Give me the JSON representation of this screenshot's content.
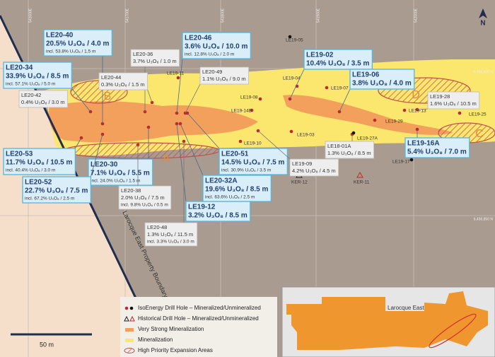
{
  "grid_labels": {
    "top": [
      "541600E",
      "541700E",
      "541800E",
      "541900E",
      "542000E"
    ],
    "right": [
      "6,456,900 N",
      "6,456,850 N"
    ]
  },
  "north_label": "N",
  "boundary_label": "Larocque East Property Boundary",
  "zones": [
    "A",
    "B",
    "C",
    "D"
  ],
  "callouts": [
    {
      "hole": "LE20-40",
      "grade": "20.5% U₃O₈ / 4.0 m",
      "incl": "incl. 53.8% U₃O₈ / 1.5 m",
      "style": "blue"
    },
    {
      "hole": "LE20-46",
      "grade": "3.6% U₃O₈ / 10.0 m",
      "incl": "incl. 12.8% U₃O₈ / 2.0 m",
      "style": "blue"
    },
    {
      "hole": "LE20-34",
      "grade": "33.9% U₃O₈ / 8.5 m",
      "incl": "incl. 57.1% U₃O₈ / 5.0 m",
      "style": "blue"
    },
    {
      "hole": "LE20-36",
      "grade": "3.7% U₃O₈ / 1.0 m",
      "style": "grey"
    },
    {
      "hole": "LE20-44",
      "grade": "0.3% U₃O₈ / 1.5 m",
      "style": "grey"
    },
    {
      "hole": "LE20-49",
      "grade": "1.1% U₃O₈ / 9.0 m",
      "style": "grey"
    },
    {
      "hole": "LE19-02",
      "grade": "10.4% U₃O₈ / 3.5 m",
      "style": "blue"
    },
    {
      "hole": "LE19-06",
      "grade": "3.8% U₃O₈ / 4.0 m",
      "style": "blue"
    },
    {
      "hole": "LE20-42",
      "grade": "0.4% U₃O₈ / 3.0 m",
      "style": "grey"
    },
    {
      "hole": "LE19-28",
      "grade": "1.6% U₃O₈ / 10.5 m",
      "style": "grey"
    },
    {
      "hole": "LE20-53",
      "grade": "11.7% U₃O₈ / 10.5 m",
      "incl": "incl. 40.4% U₃O₈ / 3.0 m",
      "style": "blue"
    },
    {
      "hole": "LE20-30",
      "grade": "7.1% U₃O₈ / 5.5 m",
      "incl": "incl. 24.0% U₃O₈ / 1.5 m",
      "style": "blue"
    },
    {
      "hole": "LE20-51",
      "grade": "14.5% U₃O₈ / 7.5 m",
      "incl": "incl. 30.9% U₃O₈ / 3.5 m",
      "style": "blue"
    },
    {
      "hole": "LE18-01A",
      "grade": "1.3% U₃O₈ / 8.5 m",
      "style": "grey"
    },
    {
      "hole": "LE19-09",
      "grade": "4.2% U₃O₈ / 4.5 m",
      "style": "grey"
    },
    {
      "hole": "LE19-16A",
      "grade": "5.4% U₃O₈ / 7.0 m",
      "style": "blue"
    },
    {
      "hole": "LE20-52",
      "grade": "22.7% U₃O₈ / 7.5 m",
      "incl": "incl. 67.2% U₃O₈ / 2.5 m",
      "style": "blue"
    },
    {
      "hole": "LE20-32A",
      "grade": "19.6% U₃O₈ / 8.5 m",
      "incl": "incl. 63.6% U₃O₈ / 2.5 m",
      "style": "blue"
    },
    {
      "hole": "LE20-38",
      "grade": "2.0% U₃O₈ / 7.5 m",
      "incl": "incl. 9.8% U₃O₈ / 0.5 m",
      "style": "grey"
    },
    {
      "hole": "LE19-12",
      "grade": "3.2% U₃O₈ / 8.5 m",
      "style": "blue"
    },
    {
      "hole": "LE20-48",
      "grade": "1.3% U₃O₈ / 11.5 m",
      "incl": "incl. 3.3% U₃O₈ / 3.0 m",
      "style": "grey"
    }
  ],
  "hole_labels": [
    "LE19-05",
    "LE19-11",
    "LE19-04",
    "LE19-07",
    "LE19-08",
    "LE19-14B",
    "LE19-03",
    "LE19-29",
    "LE19-13",
    "LE19-25",
    "LE19-27A",
    "LE19-10",
    "LE19-17",
    "KER-12",
    "KER-11"
  ],
  "legend": [
    "IsoEnergy Drill Hole – Mineralized/Unmineralized",
    "Historical Drill Hole – Mineralized/Unmineralized",
    "Very Strong Mineralization",
    "Mineralization",
    "High Priority Expansion Areas"
  ],
  "scale_label": "50 m",
  "inset_label": "Larocque East"
}
